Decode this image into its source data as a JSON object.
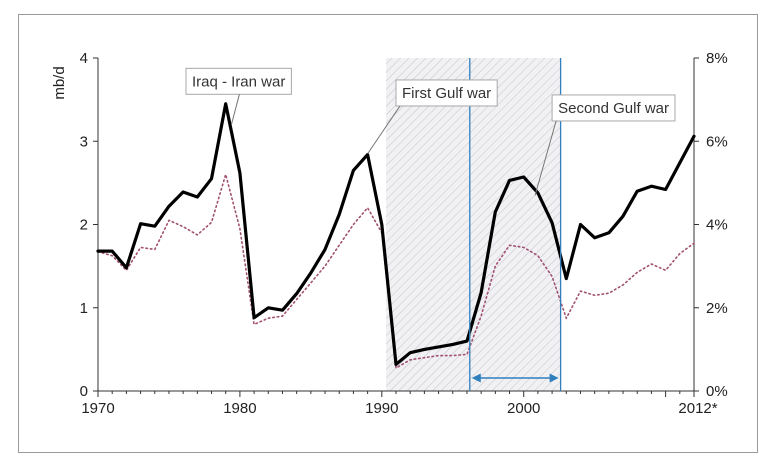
{
  "chart_data": {
    "type": "line",
    "title": "",
    "xlabel": "",
    "ylabel": "mb/d",
    "xlim": [
      1970,
      2012
    ],
    "ylim": [
      0,
      4
    ],
    "y2lim": [
      0,
      8
    ],
    "grid": false,
    "x_tick_labels": [
      "1970",
      "1980",
      "1990",
      "2000",
      "2012*"
    ],
    "y_tick_labels": [
      "0",
      "1",
      "2",
      "3",
      "4"
    ],
    "y2_tick_labels": [
      "0%",
      "2%",
      "4%",
      "6%",
      "8%"
    ],
    "series": [
      {
        "name": "",
        "axis": "left",
        "style": "solid",
        "color": "#000000",
        "x": [
          1970,
          1971,
          1972,
          1973,
          1974,
          1975,
          1976,
          1977,
          1978,
          1979,
          1980,
          1981,
          1982,
          1983,
          1984,
          1985,
          1986,
          1987,
          1988,
          1989,
          1990,
          1991,
          1992,
          1993,
          1994,
          1995,
          1996,
          1997,
          1998,
          1999,
          2000,
          2001,
          2002,
          2003,
          2004,
          2005,
          2006,
          2007,
          2008,
          2009,
          2010,
          2011,
          2012
        ],
        "values": [
          1.68,
          1.68,
          1.48,
          2.01,
          1.98,
          2.22,
          2.39,
          2.33,
          2.55,
          3.45,
          2.62,
          0.88,
          1.0,
          0.97,
          1.17,
          1.42,
          1.7,
          2.12,
          2.65,
          2.84,
          2.0,
          0.32,
          0.46,
          0.5,
          0.53,
          0.56,
          0.6,
          1.18,
          2.15,
          2.53,
          2.57,
          2.38,
          2.02,
          1.35,
          2.0,
          1.84,
          1.9,
          2.1,
          2.4,
          2.46,
          2.42,
          2.74,
          3.06
        ]
      },
      {
        "name": "",
        "axis": "right",
        "style": "dotted",
        "color": "#a05070",
        "x": [
          1970,
          1971,
          1972,
          1973,
          1974,
          1975,
          1976,
          1977,
          1978,
          1979,
          1980,
          1981,
          1982,
          1983,
          1984,
          1985,
          1986,
          1987,
          1988,
          1989,
          1990,
          1991,
          1992,
          1993,
          1994,
          1995,
          1996,
          1997,
          1998,
          1999,
          2000,
          2001,
          2002,
          2003,
          2004,
          2005,
          2006,
          2007,
          2008,
          2009,
          2010,
          2011,
          2012
        ],
        "values": [
          3.35,
          3.25,
          2.9,
          3.45,
          3.4,
          4.1,
          3.95,
          3.75,
          4.05,
          5.2,
          3.9,
          1.6,
          1.75,
          1.8,
          2.2,
          2.6,
          3.0,
          3.5,
          4.0,
          4.4,
          3.8,
          0.55,
          0.75,
          0.8,
          0.85,
          0.85,
          0.88,
          1.8,
          3.0,
          3.5,
          3.45,
          3.25,
          2.75,
          1.75,
          2.4,
          2.3,
          2.35,
          2.55,
          2.85,
          3.05,
          2.9,
          3.3,
          3.55
        ]
      }
    ],
    "shaded_periods": [
      {
        "from": 1990.3,
        "to": 2002.6
      }
    ],
    "vertical_lines": [
      1996.2,
      2002.6
    ],
    "double_arrow": {
      "from": 1996.2,
      "to": 2002.6
    },
    "annotations": [
      {
        "text": "Iraq - Iran war",
        "box_x": 1976.2,
        "box_y": 3.72,
        "point_x": 1979.4,
        "point_y": 3.2
      },
      {
        "text": "First Gulf war",
        "box_x": 1991.0,
        "box_y": 3.58,
        "point_x": 1989.0,
        "point_y": 2.85
      },
      {
        "text": "Second Gulf war",
        "box_x": 2002.0,
        "box_y": 3.4,
        "point_x": 2000.8,
        "point_y": 2.35
      }
    ]
  }
}
